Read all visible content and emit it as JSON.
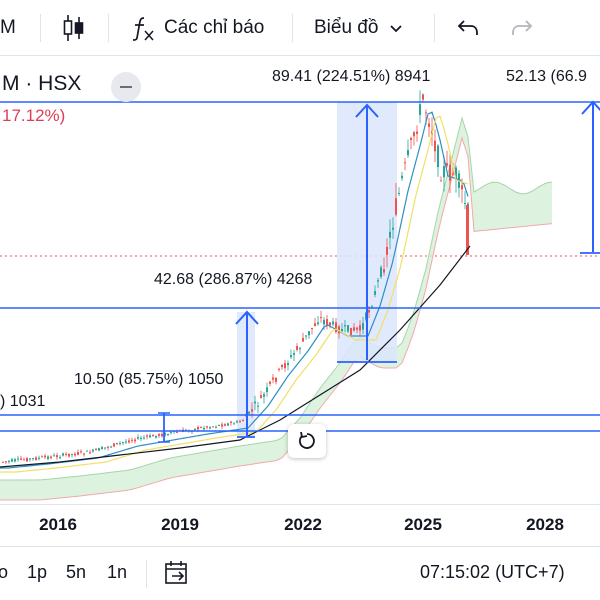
{
  "toolbar": {
    "interval_label": "M",
    "indicators_label": "Các chỉ báo",
    "chart_type_label": "Biểu đồ"
  },
  "legend": {
    "symbol": "M · HSX",
    "change": "17.12%)"
  },
  "measure_labels": {
    "m1": "89.41 (224.51%) 8941",
    "m2": "52.13 (66.9",
    "m3": "42.68 (286.87%) 4268",
    "m4": "10.50 (85.75%) 1050",
    "m5": ") 1031"
  },
  "xaxis": {
    "ticks": [
      "2016",
      "2019",
      "2022",
      "2025",
      "2028"
    ]
  },
  "bottombar": {
    "ranges": [
      "o",
      "1p",
      "5n",
      "1n"
    ],
    "clock": "07:15:02 (UTC+7)"
  },
  "colors": {
    "up": "#26a69a",
    "down": "#ef5350",
    "measure": "#2962ff",
    "measure_fill": "#dbe6fb",
    "cloud_fill": "#d6efd8",
    "cloud_upper": "#a5d6a7",
    "cloud_lower": "#f2a9a9",
    "ma_fast": "#2c8fc6",
    "ma_mid": "#f0e068",
    "ma_slow": "#131722"
  }
}
